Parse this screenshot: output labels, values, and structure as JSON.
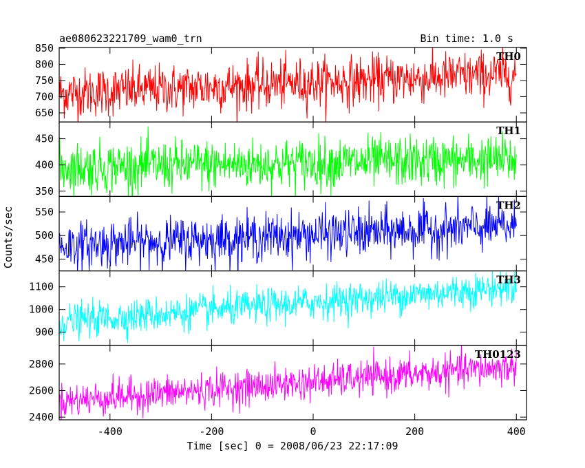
{
  "chart_data": {
    "type": "line",
    "title": "ae080623221709_wam0_trn",
    "bin_time": "Bin time: 1.0 s",
    "xlabel": "Time [sec] 0 = 2008/06/23 22:17:09",
    "ylabel": "Counts/sec",
    "xlim": [
      -500,
      420
    ],
    "x_ticks": [
      -400,
      -200,
      0,
      200,
      400
    ],
    "x_range_data": [
      -500,
      400
    ],
    "bin": 1.0,
    "grid": false,
    "panels": [
      {
        "name": "TH0",
        "color": "#ff0000",
        "ylim": [
          622,
          852
        ],
        "y_ticks": [
          650,
          700,
          750,
          800,
          850
        ],
        "start": 710,
        "end": 770,
        "noise": 38
      },
      {
        "name": "TH1",
        "color": "#00ff00",
        "ylim": [
          340,
          482
        ],
        "y_ticks": [
          350,
          400,
          450
        ],
        "start": 395,
        "end": 410,
        "noise": 24
      },
      {
        "name": "TH2",
        "color": "#0000ff",
        "ylim": [
          425,
          583
        ],
        "y_ticks": [
          450,
          500,
          550
        ],
        "start": 478,
        "end": 520,
        "noise": 25
      },
      {
        "name": "TH3",
        "color": "#00ffff",
        "ylim": [
          842,
          1170
        ],
        "y_ticks": [
          900,
          1000,
          1100
        ],
        "start": 945,
        "end": 1100,
        "noise": 38
      },
      {
        "name": "TH0123",
        "color": "#ff00ff",
        "ylim": [
          2380,
          2940
        ],
        "y_ticks": [
          2400,
          2600,
          2800
        ],
        "start": 2520,
        "end": 2780,
        "noise": 65
      }
    ]
  }
}
